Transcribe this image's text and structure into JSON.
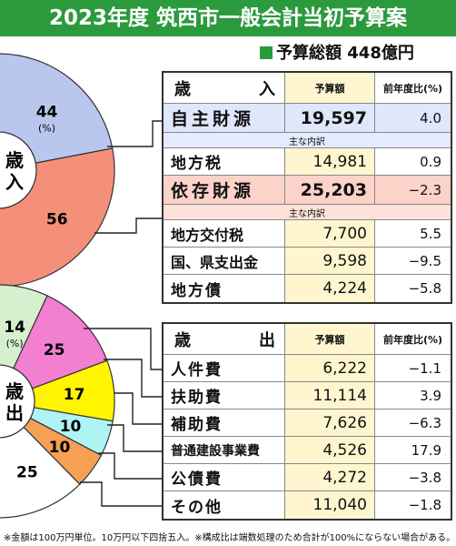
{
  "title": "2023年度 筑西市一般会計当初予算案",
  "total_label": "予算総額 448億円",
  "colors": {
    "green": "#2b9a3d",
    "income_self": "#b9c7ee",
    "income_dependent": "#f4907a",
    "exp_personnel": "#d6f0cf",
    "exp_assistance": "#f27fd0",
    "exp_subsidy": "#fff500",
    "exp_construction": "#aef4f4",
    "exp_bond": "#f5a055",
    "exp_other": "#ffffff"
  },
  "income": {
    "header": {
      "label_left": "歳",
      "label_right": "入",
      "amount": "予算額",
      "pct": "前年度比(%)"
    },
    "self": {
      "label": "自主財源",
      "amount": "19,597",
      "pct": "4.0"
    },
    "self_sub": "主な内訳",
    "rows_self": [
      {
        "label": "地方税",
        "amount": "14,981",
        "pct": "0.9"
      }
    ],
    "dep": {
      "label": "依存財源",
      "amount": "25,203",
      "pct": "−2.3"
    },
    "dep_sub": "主な内訳",
    "rows_dep": [
      {
        "label": "地方交付税",
        "amount": "7,700",
        "pct": "5.5"
      },
      {
        "label": "国、県支出金",
        "amount": "9,598",
        "pct": "−9.5"
      },
      {
        "label": "地方債",
        "amount": "4,224",
        "pct": "−5.8"
      }
    ]
  },
  "expenditure": {
    "header": {
      "label_left": "歳",
      "label_right": "出",
      "amount": "予算額",
      "pct": "前年度比(%)"
    },
    "rows": [
      {
        "label": "人件費",
        "amount": "6,222",
        "pct": "−1.1"
      },
      {
        "label": "扶助費",
        "amount": "11,114",
        "pct": "3.9"
      },
      {
        "label": "補助費",
        "amount": "7,626",
        "pct": "−6.3"
      },
      {
        "label": "普通建設事業費",
        "amount": "4,526",
        "pct": "17.9"
      },
      {
        "label": "公債費",
        "amount": "4,272",
        "pct": "−3.8"
      },
      {
        "label": "その他",
        "amount": "11,040",
        "pct": "−1.8"
      }
    ]
  },
  "footnote": "※金額は100万円単位。10万円以下四捨五入。※構成比は端数処理のため合計が100%にならない場合がある。",
  "chart_data": [
    {
      "type": "pie",
      "title": "歳入",
      "unit_label": "(%)",
      "categories": [
        "自主財源",
        "依存財源"
      ],
      "values": [
        44,
        56
      ]
    },
    {
      "type": "pie",
      "title": "歳出",
      "unit_label": "(%)",
      "categories": [
        "人件費",
        "扶助費",
        "補助費",
        "普通建設事業費",
        "公債費",
        "その他"
      ],
      "values": [
        14,
        25,
        17,
        10,
        10,
        25
      ]
    }
  ]
}
